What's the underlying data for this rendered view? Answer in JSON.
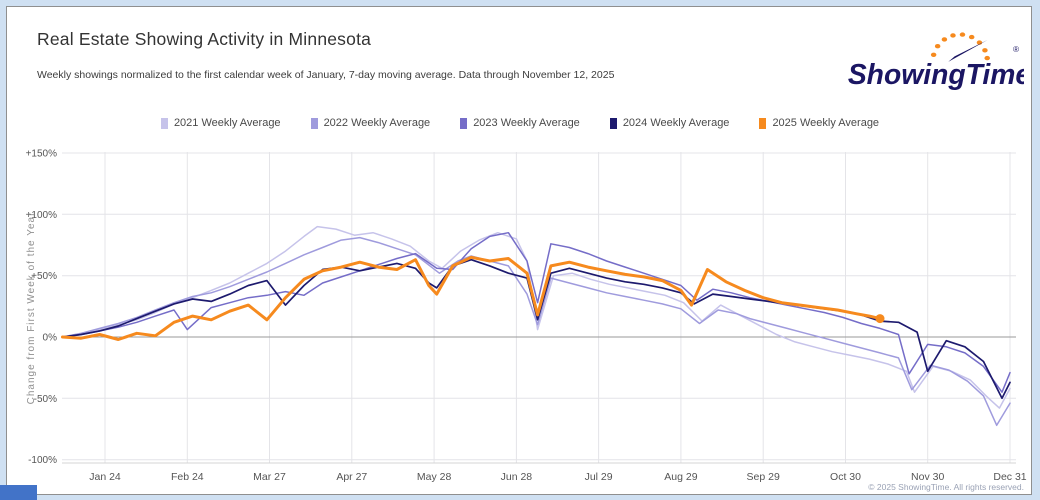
{
  "header": {
    "title": "Real Estate Showing Activity in Minnesota",
    "subtitle": "Weekly showings normalized to the first calendar week of January, 7-day moving average. Data through November 12, 2025"
  },
  "logo": {
    "text": "ShowingTime",
    "registered": "®",
    "navy": "#1b1663",
    "orange": "#f68a1e"
  },
  "footer": {
    "copyright": "© 2025 ShowingTime. All rights reserved."
  },
  "chart_data": {
    "type": "line",
    "title": "Real Estate Showing Activity in Minnesota",
    "ylabel": "Change from First Week of the Year",
    "ylim": [
      -100,
      150
    ],
    "grid": true,
    "legend_position": "top",
    "colors": {
      "gridline": "#e4e4e8",
      "zero_line": "#9a9a9a",
      "axis_line": "#d4d4d4",
      "tick_text": "#555555",
      "ylabel_text": "#909090"
    },
    "yticks": [
      {
        "value": 150,
        "label": "+150%"
      },
      {
        "value": 100,
        "label": "+100%"
      },
      {
        "value": 50,
        "label": "+50%"
      },
      {
        "value": 0,
        "label": "0%"
      },
      {
        "value": -50,
        "label": "-50%"
      },
      {
        "value": -100,
        "label": "-100%"
      }
    ],
    "xticks": [
      {
        "day": 24,
        "label": "Jan 24"
      },
      {
        "day": 55,
        "label": "Feb 24"
      },
      {
        "day": 86,
        "label": "Mar 27"
      },
      {
        "day": 117,
        "label": "Apr 27"
      },
      {
        "day": 148,
        "label": "May 28"
      },
      {
        "day": 179,
        "label": "Jun 28"
      },
      {
        "day": 210,
        "label": "Jul 29"
      },
      {
        "day": 241,
        "label": "Aug 29"
      },
      {
        "day": 272,
        "label": "Sep 29"
      },
      {
        "day": 303,
        "label": "Oct 30"
      },
      {
        "day": 334,
        "label": "Nov 30"
      },
      {
        "day": 365,
        "label": "Dec 31"
      }
    ],
    "series": [
      {
        "name": "2021 Weekly Average",
        "color": "#c6c3ea",
        "width": 1.5,
        "end_dot": false,
        "points": [
          [
            8,
            0
          ],
          [
            15,
            3
          ],
          [
            22,
            6
          ],
          [
            29,
            10
          ],
          [
            36,
            14
          ],
          [
            43,
            20
          ],
          [
            50,
            27
          ],
          [
            57,
            32
          ],
          [
            64,
            38
          ],
          [
            71,
            44
          ],
          [
            78,
            52
          ],
          [
            85,
            60
          ],
          [
            92,
            70
          ],
          [
            99,
            82
          ],
          [
            104,
            90
          ],
          [
            111,
            88
          ],
          [
            118,
            83
          ],
          [
            125,
            85
          ],
          [
            132,
            80
          ],
          [
            139,
            74
          ],
          [
            146,
            62
          ],
          [
            151,
            56
          ],
          [
            158,
            70
          ],
          [
            165,
            79
          ],
          [
            172,
            85
          ],
          [
            179,
            80
          ],
          [
            183,
            62
          ],
          [
            187,
            6
          ],
          [
            193,
            50
          ],
          [
            200,
            52
          ],
          [
            207,
            47
          ],
          [
            214,
            43
          ],
          [
            221,
            40
          ],
          [
            228,
            37
          ],
          [
            235,
            34
          ],
          [
            242,
            28
          ],
          [
            249,
            13
          ],
          [
            256,
            26
          ],
          [
            263,
            18
          ],
          [
            270,
            10
          ],
          [
            277,
            2
          ],
          [
            284,
            -4
          ],
          [
            291,
            -8
          ],
          [
            298,
            -12
          ],
          [
            305,
            -15
          ],
          [
            312,
            -18
          ],
          [
            319,
            -22
          ],
          [
            326,
            -28
          ],
          [
            329,
            -45
          ],
          [
            336,
            -24
          ],
          [
            343,
            -28
          ],
          [
            350,
            -35
          ],
          [
            356,
            -48
          ],
          [
            361,
            -58
          ],
          [
            365,
            -42
          ]
        ]
      },
      {
        "name": "2022 Weekly Average",
        "color": "#9f9bdd",
        "width": 1.5,
        "end_dot": false,
        "points": [
          [
            8,
            0
          ],
          [
            15,
            3
          ],
          [
            22,
            7
          ],
          [
            29,
            11
          ],
          [
            36,
            16
          ],
          [
            43,
            22
          ],
          [
            50,
            28
          ],
          [
            57,
            33
          ],
          [
            64,
            36
          ],
          [
            71,
            41
          ],
          [
            78,
            47
          ],
          [
            85,
            53
          ],
          [
            92,
            60
          ],
          [
            99,
            67
          ],
          [
            106,
            73
          ],
          [
            113,
            79
          ],
          [
            120,
            81
          ],
          [
            127,
            77
          ],
          [
            134,
            72
          ],
          [
            141,
            67
          ],
          [
            150,
            52
          ],
          [
            157,
            62
          ],
          [
            162,
            66
          ],
          [
            169,
            62
          ],
          [
            176,
            58
          ],
          [
            183,
            35
          ],
          [
            187,
            10
          ],
          [
            192,
            48
          ],
          [
            199,
            44
          ],
          [
            206,
            40
          ],
          [
            213,
            36
          ],
          [
            220,
            33
          ],
          [
            227,
            30
          ],
          [
            234,
            27
          ],
          [
            241,
            23
          ],
          [
            248,
            11
          ],
          [
            255,
            22
          ],
          [
            262,
            19
          ],
          [
            267,
            15
          ],
          [
            274,
            11
          ],
          [
            281,
            7
          ],
          [
            288,
            3
          ],
          [
            295,
            -1
          ],
          [
            302,
            -5
          ],
          [
            309,
            -9
          ],
          [
            316,
            -13
          ],
          [
            323,
            -17
          ],
          [
            328,
            -43
          ],
          [
            335,
            -23
          ],
          [
            342,
            -27
          ],
          [
            349,
            -36
          ],
          [
            355,
            -48
          ],
          [
            360,
            -72
          ],
          [
            365,
            -54
          ]
        ]
      },
      {
        "name": "2023 Weekly Average",
        "color": "#756dc8",
        "width": 1.5,
        "end_dot": false,
        "points": [
          [
            8,
            0
          ],
          [
            15,
            2
          ],
          [
            22,
            5
          ],
          [
            29,
            8
          ],
          [
            36,
            12
          ],
          [
            43,
            17
          ],
          [
            50,
            22
          ],
          [
            55,
            6
          ],
          [
            64,
            24
          ],
          [
            71,
            28
          ],
          [
            78,
            32
          ],
          [
            85,
            34
          ],
          [
            92,
            37
          ],
          [
            99,
            34
          ],
          [
            106,
            44
          ],
          [
            113,
            49
          ],
          [
            120,
            54
          ],
          [
            127,
            59
          ],
          [
            134,
            64
          ],
          [
            141,
            68
          ],
          [
            149,
            56
          ],
          [
            155,
            55
          ],
          [
            162,
            72
          ],
          [
            169,
            82
          ],
          [
            176,
            85
          ],
          [
            183,
            62
          ],
          [
            187,
            28
          ],
          [
            192,
            76
          ],
          [
            199,
            73
          ],
          [
            206,
            68
          ],
          [
            213,
            62
          ],
          [
            220,
            57
          ],
          [
            227,
            52
          ],
          [
            234,
            47
          ],
          [
            241,
            42
          ],
          [
            247,
            30
          ],
          [
            253,
            39
          ],
          [
            260,
            36
          ],
          [
            267,
            32
          ],
          [
            274,
            29
          ],
          [
            281,
            26
          ],
          [
            288,
            23
          ],
          [
            295,
            20
          ],
          [
            302,
            16
          ],
          [
            309,
            11
          ],
          [
            316,
            7
          ],
          [
            323,
            2
          ],
          [
            327,
            -30
          ],
          [
            334,
            -6
          ],
          [
            341,
            -8
          ],
          [
            348,
            -13
          ],
          [
            355,
            -24
          ],
          [
            362,
            -45
          ],
          [
            365,
            -29
          ]
        ]
      },
      {
        "name": "2024 Weekly Average",
        "color": "#1d1a6e",
        "width": 1.7,
        "end_dot": false,
        "points": [
          [
            8,
            0
          ],
          [
            15,
            2
          ],
          [
            22,
            5
          ],
          [
            29,
            9
          ],
          [
            36,
            15
          ],
          [
            43,
            21
          ],
          [
            50,
            27
          ],
          [
            57,
            31
          ],
          [
            64,
            29
          ],
          [
            71,
            35
          ],
          [
            78,
            42
          ],
          [
            85,
            46
          ],
          [
            92,
            26
          ],
          [
            99,
            42
          ],
          [
            106,
            55
          ],
          [
            113,
            57
          ],
          [
            120,
            54
          ],
          [
            127,
            57
          ],
          [
            134,
            60
          ],
          [
            141,
            56
          ],
          [
            146,
            44
          ],
          [
            149,
            40
          ],
          [
            155,
            58
          ],
          [
            162,
            63
          ],
          [
            169,
            58
          ],
          [
            176,
            52
          ],
          [
            183,
            48
          ],
          [
            187,
            14
          ],
          [
            192,
            52
          ],
          [
            199,
            56
          ],
          [
            206,
            52
          ],
          [
            213,
            48
          ],
          [
            220,
            45
          ],
          [
            227,
            43
          ],
          [
            234,
            40
          ],
          [
            241,
            36
          ],
          [
            246,
            27
          ],
          [
            253,
            35
          ],
          [
            260,
            33
          ],
          [
            267,
            31
          ],
          [
            274,
            29
          ],
          [
            281,
            27
          ],
          [
            288,
            25
          ],
          [
            295,
            23
          ],
          [
            302,
            21
          ],
          [
            309,
            18
          ],
          [
            316,
            13
          ],
          [
            323,
            12
          ],
          [
            330,
            4
          ],
          [
            334,
            -28
          ],
          [
            341,
            -3
          ],
          [
            348,
            -8
          ],
          [
            355,
            -20
          ],
          [
            362,
            -50
          ],
          [
            365,
            -37
          ]
        ]
      },
      {
        "name": "2025 Weekly Average",
        "color": "#f68a1e",
        "width": 3,
        "end_dot": true,
        "points": [
          [
            8,
            0
          ],
          [
            15,
            -1
          ],
          [
            22,
            2
          ],
          [
            29,
            -2
          ],
          [
            36,
            3
          ],
          [
            43,
            1
          ],
          [
            50,
            12
          ],
          [
            57,
            17
          ],
          [
            64,
            14
          ],
          [
            71,
            21
          ],
          [
            78,
            26
          ],
          [
            85,
            14
          ],
          [
            92,
            32
          ],
          [
            99,
            47
          ],
          [
            106,
            54
          ],
          [
            113,
            57
          ],
          [
            120,
            61
          ],
          [
            127,
            57
          ],
          [
            134,
            55
          ],
          [
            141,
            63
          ],
          [
            146,
            42
          ],
          [
            149,
            35
          ],
          [
            155,
            58
          ],
          [
            162,
            65
          ],
          [
            169,
            62
          ],
          [
            176,
            64
          ],
          [
            183,
            52
          ],
          [
            187,
            18
          ],
          [
            192,
            58
          ],
          [
            199,
            61
          ],
          [
            206,
            57
          ],
          [
            213,
            54
          ],
          [
            220,
            51
          ],
          [
            227,
            49
          ],
          [
            234,
            46
          ],
          [
            241,
            38
          ],
          [
            245,
            26
          ],
          [
            251,
            55
          ],
          [
            258,
            45
          ],
          [
            265,
            38
          ],
          [
            272,
            32
          ],
          [
            279,
            28
          ],
          [
            286,
            26
          ],
          [
            293,
            24
          ],
          [
            300,
            22
          ],
          [
            307,
            19
          ],
          [
            312,
            17
          ],
          [
            316,
            15
          ]
        ]
      }
    ]
  }
}
